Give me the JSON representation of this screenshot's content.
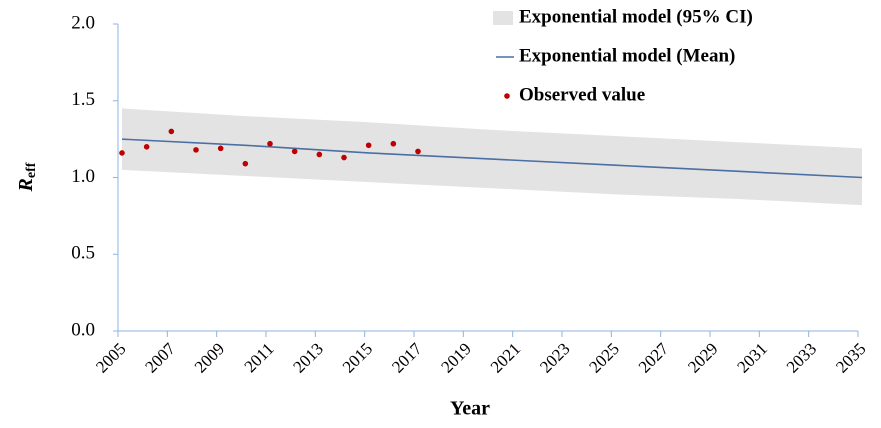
{
  "chart_data": {
    "type": "line",
    "xlabel": "Year",
    "ylabel": {
      "main": "R",
      "sub": "eff"
    },
    "xlim": [
      2005,
      2035
    ],
    "xticks": [
      2005,
      2007,
      2009,
      2011,
      2013,
      2015,
      2017,
      2019,
      2021,
      2023,
      2025,
      2027,
      2029,
      2031,
      2033,
      2035
    ],
    "ylim": [
      0,
      2
    ],
    "yticks": [
      {
        "value": 0,
        "label": "0.0"
      },
      {
        "value": 0.5,
        "label": "0.5"
      },
      {
        "value": 1,
        "label": "1.0"
      },
      {
        "value": 1.5,
        "label": "1.5"
      },
      {
        "value": 2,
        "label": "2.0"
      }
    ],
    "axis_color": "#8db3e2",
    "series": [
      {
        "name": "Exponential model (95% CI)",
        "kind": "band",
        "color": "#e3e3e3",
        "x": [
          2005,
          2010,
          2015,
          2020,
          2025,
          2030,
          2035
        ],
        "upper": [
          1.45,
          1.4,
          1.36,
          1.31,
          1.27,
          1.23,
          1.19
        ],
        "lower": [
          1.05,
          1.01,
          0.97,
          0.93,
          0.89,
          0.86,
          0.82
        ]
      },
      {
        "name": "Exponential model (Mean)",
        "kind": "line",
        "color": "#4a6fa5",
        "x": [
          2005,
          2010,
          2015,
          2020,
          2025,
          2030,
          2035
        ],
        "values": [
          1.25,
          1.21,
          1.16,
          1.12,
          1.08,
          1.04,
          1.0
        ]
      },
      {
        "name": "Observed value",
        "kind": "scatter",
        "color": "#c00000",
        "x": [
          2005,
          2006,
          2007,
          2008,
          2009,
          2010,
          2011,
          2012,
          2013,
          2014,
          2015,
          2016,
          2017
        ],
        "values": [
          1.16,
          1.2,
          1.3,
          1.18,
          1.19,
          1.09,
          1.22,
          1.17,
          1.15,
          1.13,
          1.21,
          1.22,
          1.17
        ]
      }
    ],
    "legend": "top-right"
  }
}
